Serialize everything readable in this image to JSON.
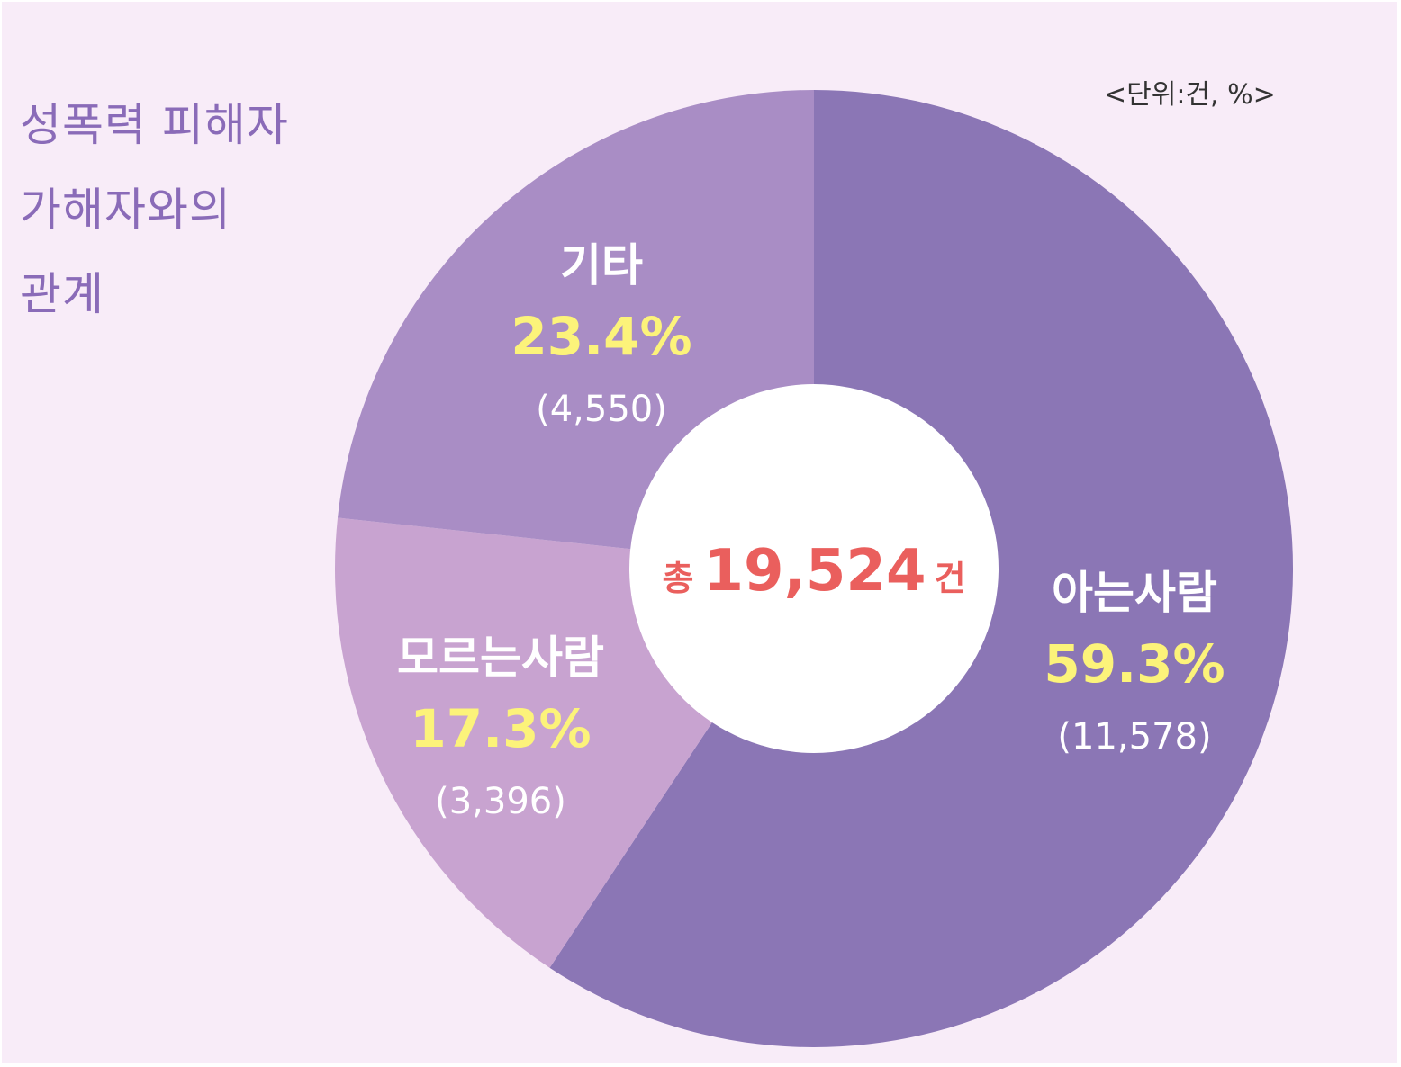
{
  "title_lines": [
    "성폭력 피해자",
    "가해자와의",
    "관계"
  ],
  "unit_text": "<단위:건, %>",
  "total": {
    "prefix": "총",
    "value": "19,524",
    "suffix": "건"
  },
  "colors": {
    "background": "#f8ecf8",
    "title": "#8a6bb8",
    "percent_text": "#fcf37a",
    "label_text": "#ffffff",
    "total_text": "#ea5f5d",
    "center_fill": "#ffffff"
  },
  "chart_data": {
    "type": "pie",
    "variant": "donut",
    "start_angle_deg": 0,
    "direction": "clockwise",
    "series": [
      {
        "name": "아는사람",
        "value": 11578,
        "percent": 59.3,
        "percent_label": "59.3%",
        "count_label": "(11,578)",
        "color": "#8b76b5"
      },
      {
        "name": "모르는사람",
        "value": 3396,
        "percent": 17.3,
        "percent_label": "17.3%",
        "count_label": "(3,396)",
        "color": "#c8a3d0"
      },
      {
        "name": "기타",
        "value": 4550,
        "percent": 23.4,
        "percent_label": "23.4%",
        "count_label": "(4,550)",
        "color": "#a98dc5"
      }
    ],
    "total": 19524
  }
}
